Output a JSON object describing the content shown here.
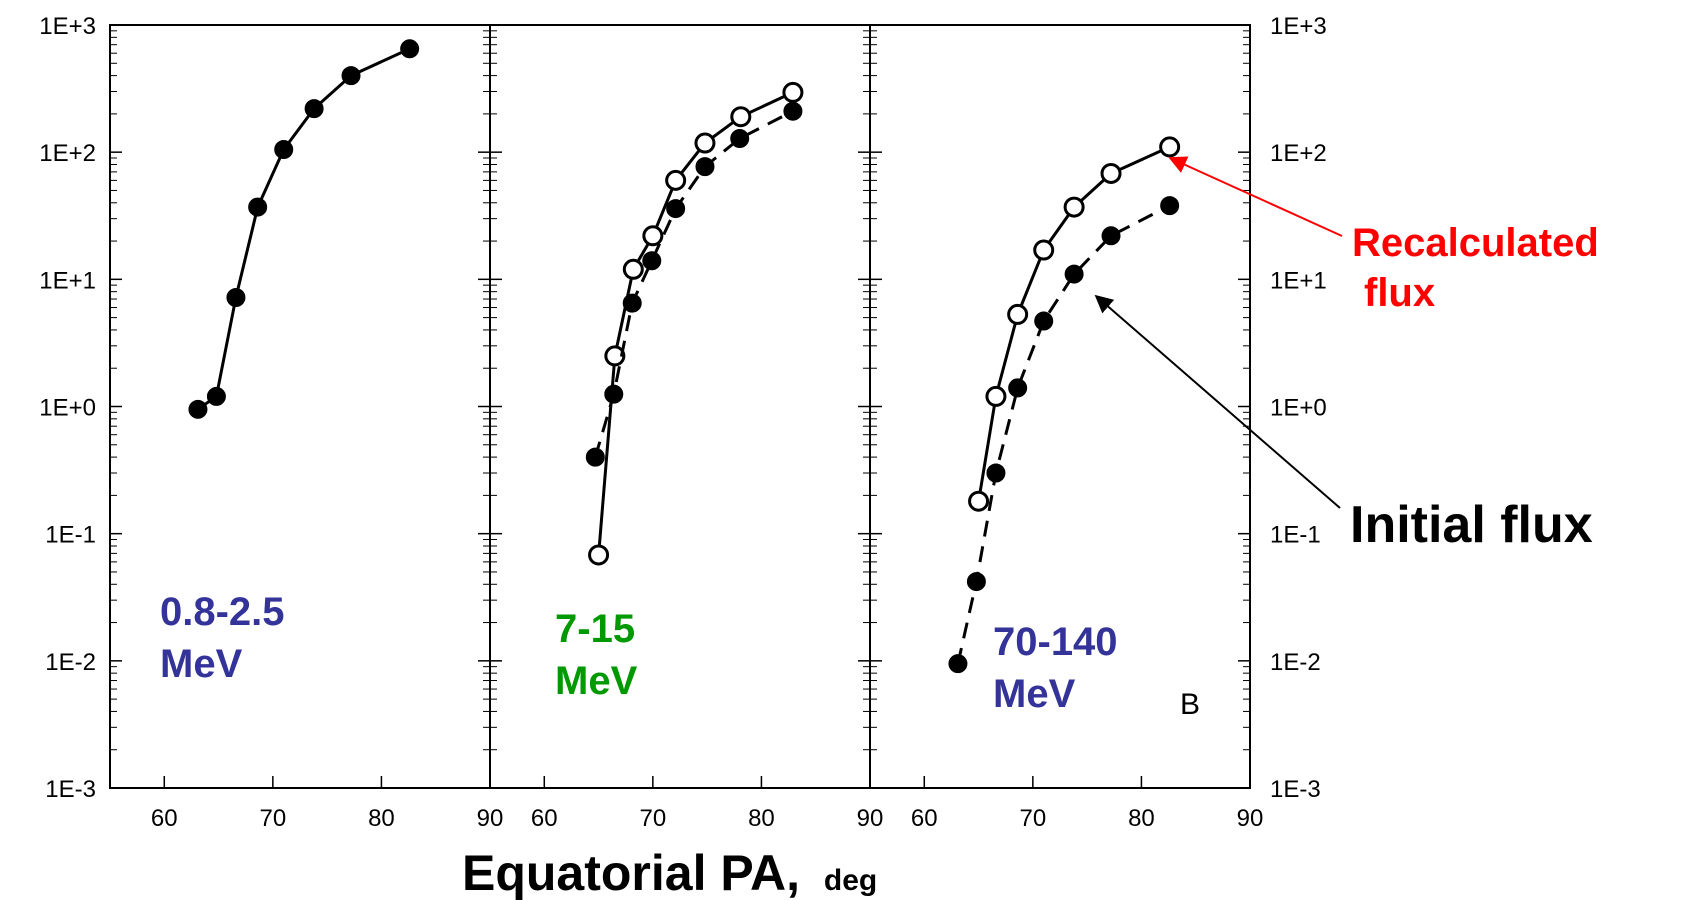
{
  "chart_data": [
    {
      "type": "line",
      "panel_label": [
        "0.8-2.5",
        "MeV"
      ],
      "label_color": "#333399",
      "xlim": [
        55,
        90
      ],
      "ylim": [
        0.001,
        1000
      ],
      "yscale": "log",
      "xticks": [
        "60",
        "70",
        "80",
        "90"
      ],
      "series": [
        {
          "style": "solid",
          "marker": "filled",
          "x": [
            63.1,
            64.8,
            66.6,
            68.6,
            71.0,
            73.8,
            77.2,
            82.6
          ],
          "y": [
            0.95,
            1.2,
            7.2,
            37,
            105,
            220,
            400,
            650
          ]
        }
      ]
    },
    {
      "type": "line",
      "panel_label": [
        "7-15",
        "MeV"
      ],
      "label_color": "#009900",
      "xlim": [
        55,
        90
      ],
      "ylim": [
        0.001,
        1000
      ],
      "yscale": "log",
      "xticks": [
        "60",
        "70",
        "80",
        "90"
      ],
      "series": [
        {
          "style": "solid",
          "marker": "open",
          "x": [
            65.0,
            66.5,
            68.2,
            70.0,
            72.1,
            74.8,
            78.1,
            82.9
          ],
          "y": [
            0.068,
            2.5,
            12,
            22,
            60,
            118,
            190,
            295
          ]
        },
        {
          "style": "dashed",
          "marker": "filled",
          "x": [
            64.7,
            66.4,
            68.1,
            69.9,
            72.1,
            74.8,
            78.0,
            82.9
          ],
          "y": [
            0.4,
            1.25,
            6.5,
            14,
            36,
            77,
            128,
            210
          ]
        }
      ]
    },
    {
      "type": "line",
      "panel_label": [
        "70-140",
        "MeV"
      ],
      "label_color": "#333399",
      "corner_letter": "B",
      "xlim": [
        55,
        90
      ],
      "ylim": [
        0.001,
        1000
      ],
      "yscale": "log",
      "xticks": [
        "60",
        "70",
        "80",
        "90"
      ],
      "yticks_right": [
        "1E+3",
        "1E+2",
        "1E+1",
        "1E+0",
        "1E-1",
        "1E-2",
        "1E-3"
      ],
      "series": [
        {
          "style": "solid",
          "marker": "open",
          "x": [
            65.0,
            66.6,
            68.6,
            71.0,
            73.8,
            77.2,
            82.6
          ],
          "y": [
            0.18,
            1.2,
            5.3,
            17,
            37,
            68,
            110
          ]
        },
        {
          "style": "dashed",
          "marker": "filled",
          "x": [
            63.1,
            64.8,
            66.6,
            68.6,
            71.0,
            73.8,
            77.2,
            82.6
          ],
          "y": [
            0.0095,
            0.042,
            0.3,
            1.4,
            4.7,
            11,
            22,
            38
          ]
        }
      ]
    }
  ],
  "yticks_left": [
    "1E+3",
    "1E+2",
    "1E+1",
    "1E+0",
    "1E-1",
    "1E-2",
    "1E-3"
  ],
  "xlabel": "Equatorial PA,",
  "xlabel_unit": "deg",
  "annotations": {
    "recalculated": {
      "line1": "Recalculated",
      "line2": "flux",
      "color": "#ff0000"
    },
    "initial": {
      "text": "Initial flux",
      "color": "#000000"
    }
  }
}
